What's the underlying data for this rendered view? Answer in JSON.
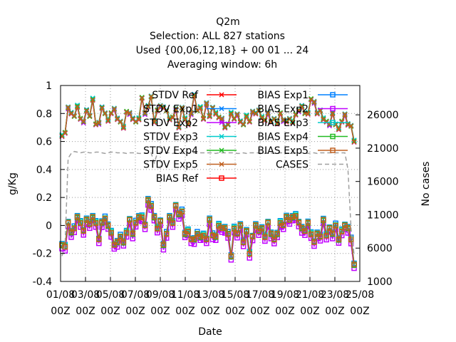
{
  "chart_data": {
    "type": "line",
    "title": [
      "Q2m",
      "Selection: ALL    827 stations",
      "Used {00,06,12,18} + 00 01 ... 24",
      "Averaging window:  6h"
    ],
    "xlabel": "Date",
    "ylabel": "g/Kg",
    "y2label": "No cases",
    "ylim": [
      -0.4,
      1.0
    ],
    "y2lim": [
      1000,
      30400
    ],
    "yticks": [
      "-0.4",
      "-0.2",
      "0",
      "0.2",
      "0.4",
      "0.6",
      "0.8",
      "1"
    ],
    "y2ticks": [
      "1000",
      "6000",
      "11000",
      "16000",
      "21000",
      "26000"
    ],
    "y2tick_values": [
      1000,
      6000,
      11000,
      16000,
      21000,
      26000
    ],
    "xticks": [
      {
        "d": "01/08",
        "h": "00Z"
      },
      {
        "d": "03/08",
        "h": "00Z"
      },
      {
        "d": "05/08",
        "h": "00Z"
      },
      {
        "d": "07/08",
        "h": "00Z"
      },
      {
        "d": "09/08",
        "h": "00Z"
      },
      {
        "d": "11/08",
        "h": "00Z"
      },
      {
        "d": "13/08",
        "h": "00Z"
      },
      {
        "d": "15/08",
        "h": "00Z"
      },
      {
        "d": "17/08",
        "h": "00Z"
      },
      {
        "d": "19/08",
        "h": "00Z"
      },
      {
        "d": "21/08",
        "h": "00Z"
      },
      {
        "d": "23/08",
        "h": "00Z"
      },
      {
        "d": "25/08",
        "h": "00Z"
      }
    ],
    "grid": true,
    "legend_position": "top-right",
    "stdv_base": [
      0.64,
      0.66,
      0.84,
      0.8,
      0.78,
      0.85,
      0.76,
      0.74,
      0.82,
      0.78,
      0.9,
      0.72,
      0.73,
      0.84,
      0.8,
      0.75,
      0.8,
      0.83,
      0.76,
      0.74,
      0.7,
      0.81,
      0.8,
      0.76,
      0.74,
      0.76,
      0.91,
      0.8,
      0.85,
      0.92,
      0.74,
      0.82,
      0.85,
      0.84,
      0.82,
      0.76,
      0.77,
      0.83,
      0.7,
      0.84,
      0.76,
      0.72,
      0.8,
      0.93,
      0.82,
      0.84,
      0.76,
      0.87,
      0.78,
      0.84,
      0.8,
      0.77,
      0.76,
      0.7,
      0.72,
      0.8,
      0.76,
      0.79,
      0.74,
      0.72,
      0.78,
      0.74,
      0.81,
      0.8,
      0.82,
      0.77,
      0.75,
      0.8,
      0.74,
      0.76,
      0.73,
      0.8,
      0.75,
      0.74,
      0.76,
      0.74,
      0.79,
      0.82,
      0.85,
      0.8,
      0.8,
      0.9,
      0.88,
      0.8,
      0.82,
      0.76,
      0.74,
      0.72,
      0.8,
      0.72,
      0.69,
      0.74,
      0.79,
      0.72,
      0.71,
      0.6
    ],
    "bias_base": [
      -0.14,
      -0.15,
      0.02,
      -0.05,
      -0.02,
      0.06,
      0.02,
      -0.04,
      0.04,
      0.01,
      0.06,
      0.02,
      -0.1,
      0.02,
      0.05,
      0.0,
      -0.05,
      -0.14,
      -0.12,
      -0.08,
      -0.12,
      -0.05,
      0.04,
      -0.06,
      0.02,
      0.06,
      0.06,
      0.0,
      0.18,
      0.14,
      0.06,
      -0.02,
      0.03,
      -0.14,
      -0.06,
      0.06,
      0.02,
      0.14,
      0.08,
      0.1,
      -0.06,
      -0.04,
      -0.1,
      -0.1,
      -0.06,
      -0.08,
      -0.07,
      -0.1,
      0.04,
      -0.07,
      -0.08,
      0.0,
      -0.02,
      -0.02,
      -0.06,
      -0.22,
      -0.02,
      -0.06,
      0.0,
      -0.12,
      -0.04,
      -0.2,
      -0.08,
      0.0,
      -0.04,
      -0.02,
      -0.08,
      0.02,
      -0.06,
      -0.1,
      -0.06,
      0.02,
      0.0,
      0.06,
      0.04,
      0.06,
      0.07,
      0.02,
      -0.02,
      -0.04,
      0.02,
      -0.06,
      -0.12,
      -0.06,
      -0.08,
      0.04,
      -0.07,
      -0.02,
      -0.06,
      0.0,
      -0.1,
      -0.04,
      0.0,
      -0.02,
      -0.1,
      -0.28
    ],
    "cases": [
      4800,
      6500,
      19500,
      20200,
      20500,
      20400,
      20300,
      20400,
      20400,
      20300,
      20300,
      20400,
      20400,
      20300,
      20200,
      20300,
      20400,
      20400,
      20300,
      20300,
      20300,
      20200,
      20300,
      20300,
      20300,
      20200,
      20200,
      20300,
      20200,
      20300,
      18800,
      20200,
      20300,
      20300,
      20300,
      20300,
      20200,
      20300,
      20300,
      20200,
      20300,
      20300,
      20300,
      20300,
      20200,
      20300,
      20300,
      20300,
      20300,
      20300,
      20200,
      20300,
      20300,
      20300,
      20300,
      20300,
      20300,
      20200,
      20200,
      20300,
      20200,
      20300,
      20300,
      20300,
      20300,
      20300,
      20200,
      20300,
      20300,
      20200,
      20300,
      20300,
      20300,
      20300,
      20300,
      20200,
      20300,
      20300,
      20300,
      20300,
      20200,
      20300,
      20300,
      20200,
      20300,
      20300,
      20300,
      20300,
      20300,
      20300,
      20300,
      20300,
      20300,
      17800,
      9000,
      5000
    ],
    "series": [
      {
        "name": "STDV Ref",
        "kind": "stdv",
        "offset": 0.0,
        "color": "#ff0000",
        "marker": "x"
      },
      {
        "name": "STDV Exp1",
        "kind": "stdv",
        "offset": 0.004,
        "color": "#0080ff",
        "marker": "x"
      },
      {
        "name": "STDV Exp2",
        "kind": "stdv",
        "offset": -0.004,
        "color": "#c000ff",
        "marker": "x"
      },
      {
        "name": "STDV Exp3",
        "kind": "stdv",
        "offset": 0.006,
        "color": "#00cccc",
        "marker": "x"
      },
      {
        "name": "STDV Exp4",
        "kind": "stdv",
        "offset": 0.002,
        "color": "#22bb22",
        "marker": "x"
      },
      {
        "name": "STDV Exp5",
        "kind": "stdv",
        "offset": 0.0,
        "color": "#c06020",
        "marker": "x"
      },
      {
        "name": "BIAS Ref",
        "kind": "bias",
        "offset": 0.0,
        "color": "#ff0000",
        "marker": "s"
      },
      {
        "name": "BIAS Exp1",
        "kind": "bias",
        "offset": 0.012,
        "color": "#0080ff",
        "marker": "s"
      },
      {
        "name": "BIAS Exp2",
        "kind": "bias",
        "offset": -0.03,
        "color": "#c000ff",
        "marker": "s"
      },
      {
        "name": "BIAS Exp3",
        "kind": "bias",
        "offset": 0.006,
        "color": "#00cccc",
        "marker": "s"
      },
      {
        "name": "BIAS Exp4",
        "kind": "bias",
        "offset": 0.0,
        "color": "#22bb22",
        "marker": "s"
      },
      {
        "name": "BIAS Exp5",
        "kind": "bias",
        "offset": 0.0,
        "color": "#c06020",
        "marker": "s"
      },
      {
        "name": "CASES",
        "kind": "cases",
        "offset": 0.0,
        "color": "#a0a0a0",
        "marker": "none"
      }
    ]
  }
}
